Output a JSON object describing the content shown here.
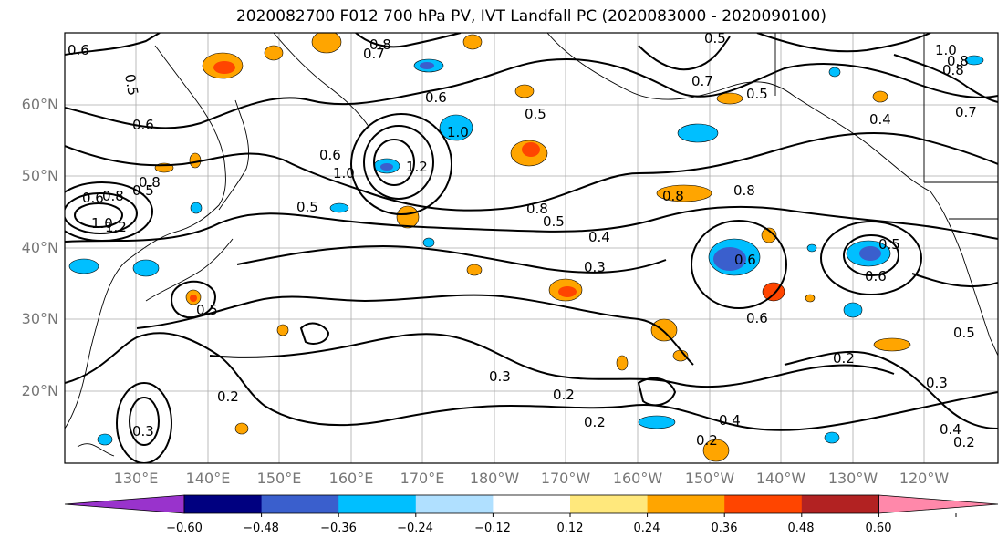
{
  "title": "2020082700 F012 700 hPa PV, IVT Landfall PC (2020083000 - 2020090100)",
  "lat_labels": [
    "60°N",
    "50°N",
    "40°N",
    "30°N",
    "20°N"
  ],
  "lon_labels": [
    "130°E",
    "140°E",
    "150°E",
    "160°E",
    "170°E",
    "180°W",
    "170°W",
    "160°W",
    "150°W",
    "140°W",
    "130°W",
    "120°W"
  ],
  "contour_labels": [
    "0.6",
    "0.5",
    "0.8",
    "0.7",
    "0.5",
    "0.8",
    "1.0",
    "0.8",
    "0.7",
    "0.5",
    "0.6",
    "0.6",
    "0.5",
    "0.4",
    "0.7",
    "0.6",
    "0.5",
    "1.0",
    "1.2",
    "0.8",
    "1.0",
    "0.6",
    "1.0",
    "1.2",
    "0.8",
    "0.5",
    "0.8",
    "0.5",
    "0.4",
    "0.3",
    "0.8",
    "0.8",
    "0.6",
    "0.5",
    "0.3",
    "0.2",
    "0.6",
    "0.5",
    "0.6",
    "0.2",
    "0.2",
    "0.4",
    "0.2",
    "0.3",
    "0.4",
    "0.2",
    "0.3",
    "0.2",
    "0.5"
  ],
  "colorbar": {
    "colors": [
      "#9933cc",
      "#000080",
      "#3a5fcd",
      "#00bfff",
      "#b0e0ff",
      "#ffffff",
      "#ffe87c",
      "#ffa500",
      "#ff4500",
      "#b22222",
      "#ff88aa"
    ],
    "tick_labels": [
      "−0.60",
      "−0.48",
      "−0.36",
      "−0.24",
      "−0.12",
      "0.12",
      "0.24",
      "0.36",
      "0.48",
      "0.60"
    ]
  }
}
